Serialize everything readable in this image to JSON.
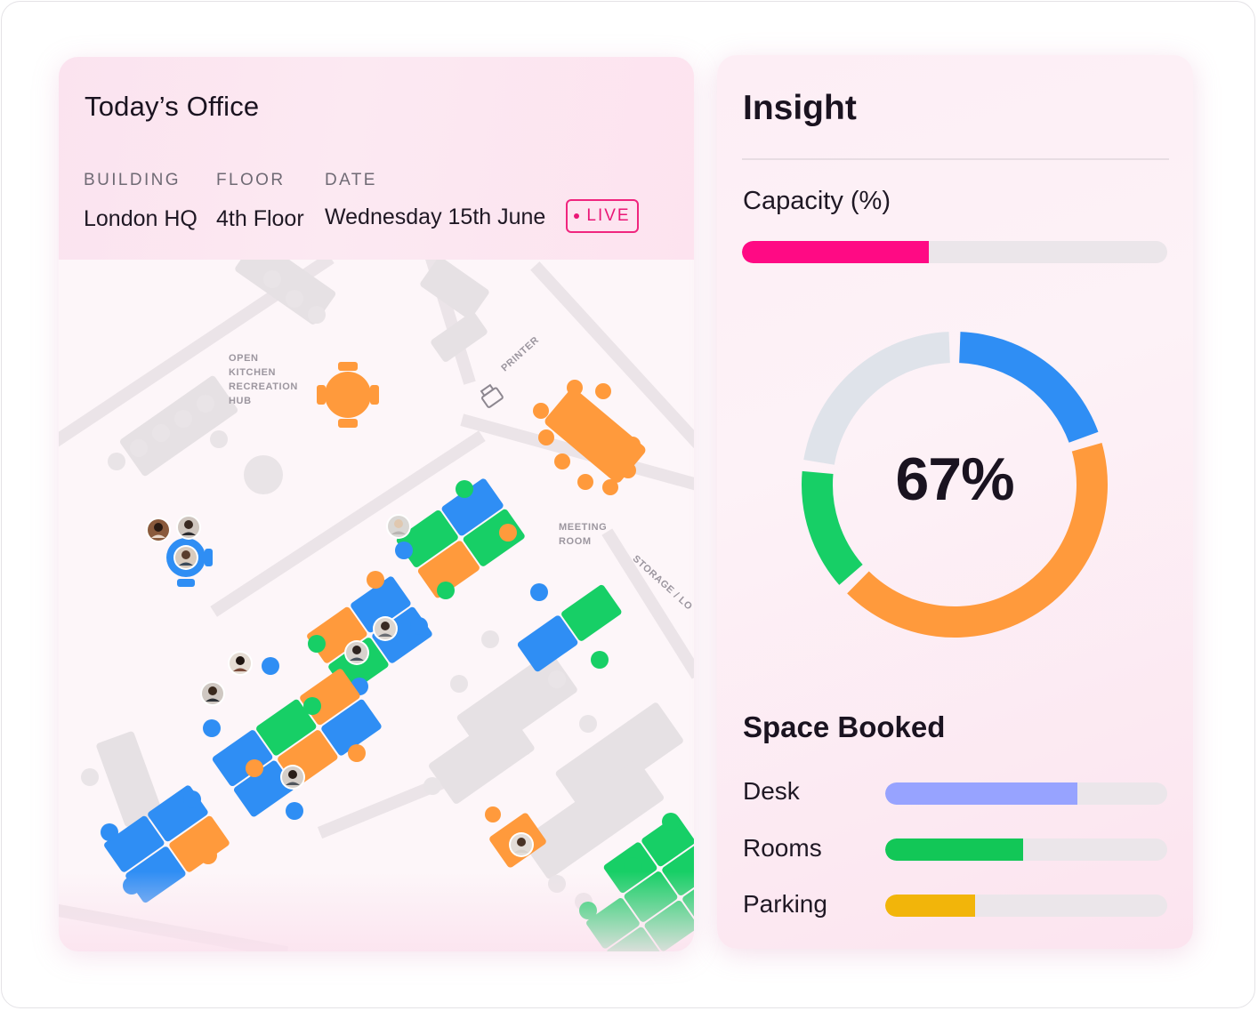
{
  "office": {
    "title": "Today’s Office",
    "meta": {
      "building_label": "BUILDING",
      "building_value": "London HQ",
      "floor_label": "FLOOR",
      "floor_value": "4th Floor",
      "date_label": "DATE",
      "date_value": "Wednesday 15th June",
      "live_label": "LIVE"
    },
    "map_labels": {
      "kitchen": [
        "OPEN",
        "KITCHEN",
        "RECREATION",
        "HUB"
      ],
      "printer": "PRINTER",
      "meeting": [
        "MEETING",
        "ROOM"
      ],
      "storage": "STORAGE / LO"
    }
  },
  "insight": {
    "title": "Insight",
    "capacity_label": "Capacity (%)",
    "capacity_fraction": 0.44,
    "donut_value": "67%",
    "space_booked_title": "Space Booked",
    "space_booked": [
      {
        "label": "Desk",
        "fraction": 0.68,
        "color": "#97a3ff"
      },
      {
        "label": "Rooms",
        "fraction": 0.49,
        "color": "#12c757"
      },
      {
        "label": "Parking",
        "fraction": 0.32,
        "color": "#f2b50a"
      }
    ]
  },
  "colors": {
    "accent": "#ff0a84",
    "blue": "#2f8ef4",
    "orange": "#ff9a3c",
    "green": "#17cf66",
    "gray": "#dfe3ea"
  },
  "chart_data": {
    "type": "pie",
    "title": "",
    "center_label": "67%",
    "values": [
      0.2,
      0.43,
      0.14,
      0.23
    ],
    "colors": [
      "#2f8ef4",
      "#ff9a3c",
      "#17cf66",
      "#dfe3ea"
    ]
  }
}
